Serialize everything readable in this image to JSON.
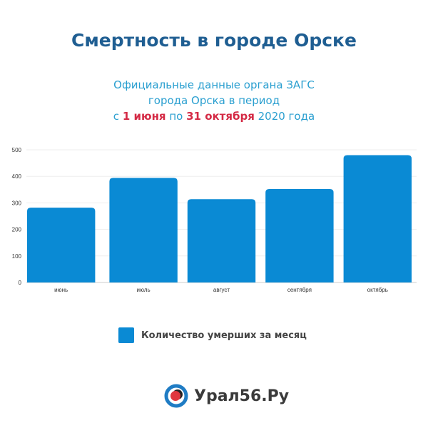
{
  "header": {
    "title": "Смертность в городе Орске",
    "subtitle_line1": "Официальные данные органа ЗАГС",
    "subtitle_line2": "города Орска в период",
    "subtitle_line3_prefix": "с ",
    "subtitle_line3_from": "1 июня",
    "subtitle_line3_mid": " по ",
    "subtitle_line3_to": "31 октября",
    "subtitle_line3_suffix": " 2020 года"
  },
  "colors": {
    "title": "#1f5e92",
    "subtitle": "#2a9fd0",
    "highlight": "#d42a45",
    "bar": "#0a8ad4"
  },
  "chart_data": {
    "type": "bar",
    "categories": [
      "июнь",
      "июль",
      "август",
      "сентября",
      "октябрь"
    ],
    "series": [
      {
        "name": "Количество умерших за месяц",
        "values": [
          282,
          394,
          314,
          352,
          480
        ]
      }
    ],
    "ylim": [
      0,
      500
    ],
    "yticks": [
      0,
      100,
      200,
      300,
      400,
      500
    ],
    "grid": true,
    "legend": "bottom"
  },
  "legend": {
    "label": "Количество умерших за месяц"
  },
  "logo": {
    "text": "Урал56.Ру"
  }
}
